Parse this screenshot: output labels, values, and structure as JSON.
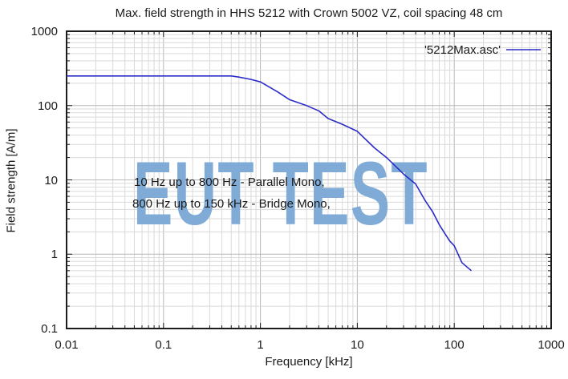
{
  "chart_data": {
    "type": "line",
    "title": "Max. field strength in HHS 5212 with Crown 5002 VZ, coil spacing 48 cm",
    "xlabel": "Frequency [kHz]",
    "ylabel": "Field strength [A/m]",
    "x_scale": "log",
    "y_scale": "log",
    "xlim": [
      0.01,
      1000
    ],
    "ylim": [
      0.1,
      1000
    ],
    "x_ticks": [
      {
        "v": 0.01,
        "label": "0.01"
      },
      {
        "v": 0.1,
        "label": "0.1"
      },
      {
        "v": 1,
        "label": "1"
      },
      {
        "v": 10,
        "label": "10"
      },
      {
        "v": 100,
        "label": "100"
      },
      {
        "v": 1000,
        "label": "1000"
      }
    ],
    "y_ticks": [
      {
        "v": 0.1,
        "label": "0.1"
      },
      {
        "v": 1,
        "label": "1"
      },
      {
        "v": 10,
        "label": "10"
      },
      {
        "v": 100,
        "label": "100"
      },
      {
        "v": 1000,
        "label": "1000"
      }
    ],
    "grid": "major and minor decade lines, solid light gray, log-log",
    "legend": {
      "label": "'5212Max.asc'",
      "position": "top-right-inside"
    },
    "series": [
      {
        "name": "'5212Max.asc'",
        "style": "line",
        "color": "#2b2bc8",
        "x": [
          0.01,
          0.02,
          0.05,
          0.1,
          0.2,
          0.3,
          0.5,
          0.6,
          0.8,
          1,
          1.5,
          2,
          3,
          4,
          5,
          7,
          10,
          15,
          20,
          30,
          40,
          50,
          60,
          70,
          80,
          90,
          100,
          120,
          150
        ],
        "y": [
          250,
          250,
          250,
          250,
          250,
          250,
          250,
          242,
          225,
          208,
          153,
          120,
          100,
          85,
          67,
          56,
          45,
          27,
          20,
          12,
          8.8,
          5.3,
          3.7,
          2.5,
          1.9,
          1.5,
          1.3,
          0.77,
          0.6
        ]
      }
    ],
    "annotations": {
      "line1": "10 Hz up to 800 Hz - Parallel Mono,",
      "line2": "800 Hz up to 150 kHz - Bridge Mono,"
    },
    "watermark": "EUT TEST",
    "colors": {
      "curve": "#2b2bc8",
      "grid_major": "#b8b8b8",
      "grid_minor": "#dadada",
      "frame": "#1c1c1c",
      "watermark": "#7fabd6",
      "text": "#1a1a1a",
      "background": "#ffffff"
    }
  }
}
